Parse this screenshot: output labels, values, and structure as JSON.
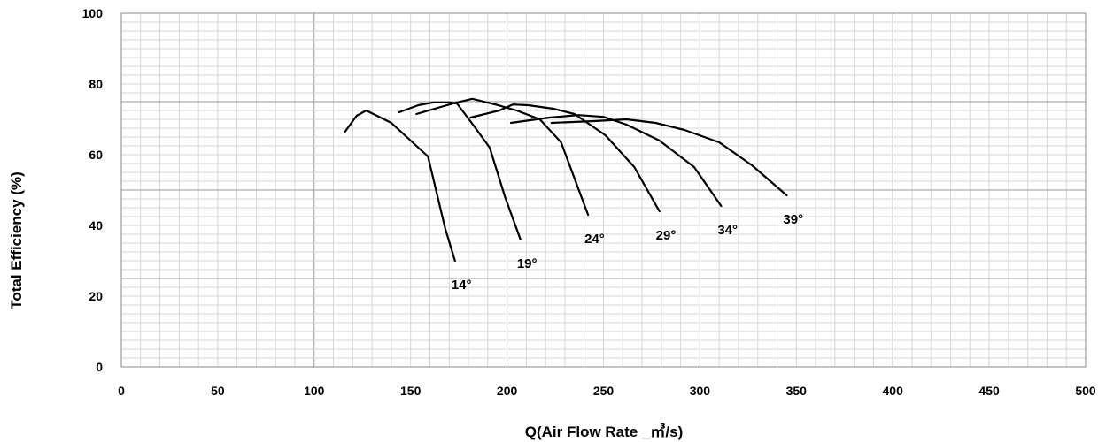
{
  "chart_data": {
    "type": "line",
    "xlabel": "Q(Air Flow Rate _㎥/s)",
    "ylabel": "Total Efficiency (%)",
    "xlim": [
      0,
      500
    ],
    "ylim": [
      0,
      100
    ],
    "x_ticks": [
      "0",
      "50",
      "100",
      "150",
      "200",
      "250",
      "300",
      "350",
      "400",
      "450",
      "500"
    ],
    "y_ticks": [
      "0",
      "20",
      "40",
      "60",
      "80",
      "100"
    ],
    "grid": true,
    "series": [
      {
        "name": "14°",
        "x": [
          116,
          122,
          127,
          140,
          159,
          168,
          173
        ],
        "y": [
          66.5,
          71,
          72.5,
          69,
          59.5,
          39,
          30
        ]
      },
      {
        "name": "19°",
        "x": [
          144,
          154,
          162,
          170,
          174,
          183,
          191,
          199,
          207
        ],
        "y": [
          72,
          74,
          74.8,
          74.8,
          74.5,
          68,
          62,
          48,
          36
        ]
      },
      {
        "name": "24°",
        "x": [
          153,
          172,
          182,
          194,
          205,
          217,
          228,
          242
        ],
        "y": [
          71.5,
          74.5,
          75.8,
          74.2,
          72.5,
          70,
          63.5,
          43
        ]
      },
      {
        "name": "29°",
        "x": [
          181,
          196,
          203,
          211,
          224,
          235,
          251,
          266,
          279
        ],
        "y": [
          70.5,
          72.5,
          74.2,
          74,
          73,
          71.5,
          65.5,
          56.5,
          44
        ]
      },
      {
        "name": "34°",
        "x": [
          202,
          222,
          237,
          250,
          262,
          279,
          297,
          311
        ],
        "y": [
          69,
          70.5,
          71.2,
          70.7,
          68.5,
          64,
          56.5,
          45.5
        ]
      },
      {
        "name": "39°",
        "x": [
          223,
          245,
          262,
          277,
          292,
          310,
          327,
          345
        ],
        "y": [
          69,
          69.5,
          70,
          69,
          67,
          63.5,
          57,
          48.5
        ]
      }
    ]
  }
}
